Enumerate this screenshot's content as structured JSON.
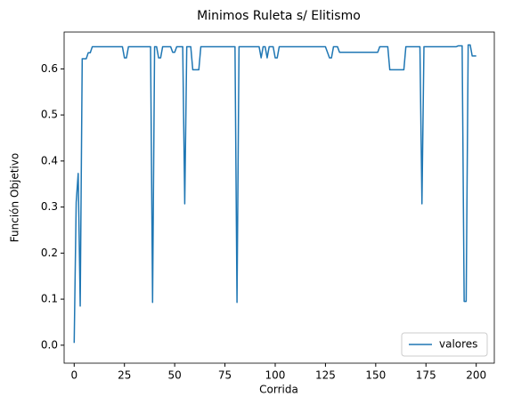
{
  "chart_data": {
    "type": "line",
    "title": "Minimos Ruleta s/ Elitismo",
    "x_label": "Corrida",
    "y_label": "Función Objetivo",
    "x": [
      0,
      1,
      2,
      3,
      4,
      5,
      6,
      7,
      8,
      9,
      10,
      11,
      12,
      13,
      14,
      15,
      16,
      17,
      18,
      19,
      20,
      21,
      22,
      23,
      24,
      25,
      26,
      27,
      28,
      29,
      30,
      31,
      32,
      33,
      34,
      35,
      36,
      37,
      38,
      39,
      40,
      41,
      42,
      43,
      44,
      45,
      46,
      47,
      48,
      49,
      50,
      51,
      52,
      53,
      54,
      55,
      56,
      57,
      58,
      59,
      60,
      61,
      62,
      63,
      64,
      65,
      66,
      67,
      68,
      69,
      70,
      71,
      72,
      73,
      74,
      75,
      76,
      77,
      78,
      79,
      80,
      81,
      82,
      83,
      84,
      85,
      86,
      87,
      88,
      89,
      90,
      91,
      92,
      93,
      94,
      95,
      96,
      97,
      98,
      99,
      100,
      101,
      102,
      103,
      104,
      105,
      106,
      107,
      108,
      109,
      110,
      111,
      112,
      113,
      114,
      115,
      116,
      117,
      118,
      119,
      120,
      121,
      122,
      123,
      124,
      125,
      126,
      127,
      128,
      129,
      130,
      131,
      132,
      133,
      134,
      135,
      136,
      137,
      138,
      139,
      140,
      141,
      142,
      143,
      144,
      145,
      146,
      147,
      148,
      149,
      150,
      151,
      152,
      153,
      154,
      155,
      156,
      157,
      158,
      159,
      160,
      161,
      162,
      163,
      164,
      165,
      166,
      167,
      168,
      169,
      170,
      171,
      172,
      173,
      174,
      175,
      176,
      177,
      178,
      179,
      180,
      181,
      182,
      183,
      184,
      185,
      186,
      187,
      188,
      189,
      190,
      191,
      192,
      193,
      194,
      195,
      196,
      197,
      198,
      199,
      200
    ],
    "series": [
      {
        "name": "valores",
        "color": "#1f77b4",
        "values": [
          0.005,
          0.31,
          0.373,
          0.085,
          0.622,
          0.622,
          0.622,
          0.635,
          0.635,
          0.648,
          0.648,
          0.648,
          0.648,
          0.648,
          0.648,
          0.648,
          0.648,
          0.648,
          0.648,
          0.648,
          0.648,
          0.648,
          0.648,
          0.648,
          0.648,
          0.624,
          0.624,
          0.648,
          0.648,
          0.648,
          0.648,
          0.648,
          0.648,
          0.648,
          0.648,
          0.648,
          0.648,
          0.648,
          0.648,
          0.093,
          0.648,
          0.648,
          0.624,
          0.624,
          0.648,
          0.648,
          0.648,
          0.648,
          0.648,
          0.636,
          0.636,
          0.648,
          0.648,
          0.648,
          0.648,
          0.307,
          0.648,
          0.648,
          0.648,
          0.598,
          0.598,
          0.598,
          0.598,
          0.648,
          0.648,
          0.648,
          0.648,
          0.648,
          0.648,
          0.648,
          0.648,
          0.648,
          0.648,
          0.648,
          0.648,
          0.648,
          0.648,
          0.648,
          0.648,
          0.648,
          0.648,
          0.093,
          0.648,
          0.648,
          0.648,
          0.648,
          0.648,
          0.648,
          0.648,
          0.648,
          0.648,
          0.648,
          0.648,
          0.624,
          0.648,
          0.648,
          0.624,
          0.648,
          0.648,
          0.648,
          0.624,
          0.624,
          0.648,
          0.648,
          0.648,
          0.648,
          0.648,
          0.648,
          0.648,
          0.648,
          0.648,
          0.648,
          0.648,
          0.648,
          0.648,
          0.648,
          0.648,
          0.648,
          0.648,
          0.648,
          0.648,
          0.648,
          0.648,
          0.648,
          0.648,
          0.648,
          0.636,
          0.624,
          0.624,
          0.648,
          0.648,
          0.648,
          0.636,
          0.636,
          0.636,
          0.636,
          0.636,
          0.636,
          0.636,
          0.636,
          0.636,
          0.636,
          0.636,
          0.636,
          0.636,
          0.636,
          0.636,
          0.636,
          0.636,
          0.636,
          0.636,
          0.636,
          0.648,
          0.648,
          0.648,
          0.648,
          0.648,
          0.598,
          0.598,
          0.598,
          0.598,
          0.598,
          0.598,
          0.598,
          0.598,
          0.648,
          0.648,
          0.648,
          0.648,
          0.648,
          0.648,
          0.648,
          0.648,
          0.307,
          0.648,
          0.648,
          0.648,
          0.648,
          0.648,
          0.648,
          0.648,
          0.648,
          0.648,
          0.648,
          0.648,
          0.648,
          0.648,
          0.648,
          0.648,
          0.648,
          0.648,
          0.65,
          0.65,
          0.65,
          0.095,
          0.095,
          0.652,
          0.652,
          0.628,
          0.628,
          0.628
        ]
      }
    ],
    "xlim": [
      -5,
      209
    ],
    "ylim": [
      -0.039,
      0.68
    ],
    "xticks": [
      0,
      25,
      50,
      75,
      100,
      125,
      150,
      175,
      200
    ],
    "yticks": [
      {
        "value": 0,
        "label": "0.0"
      },
      {
        "value": 0.1,
        "label": "0.1"
      },
      {
        "value": 0.2,
        "label": "0.2"
      },
      {
        "value": 0.3,
        "label": "0.3"
      },
      {
        "value": 0.4,
        "label": "0.4"
      },
      {
        "value": 0.5,
        "label": "0.5"
      },
      {
        "value": 0.6,
        "label": "0.6"
      }
    ],
    "grid": false,
    "legend": "lower right"
  }
}
